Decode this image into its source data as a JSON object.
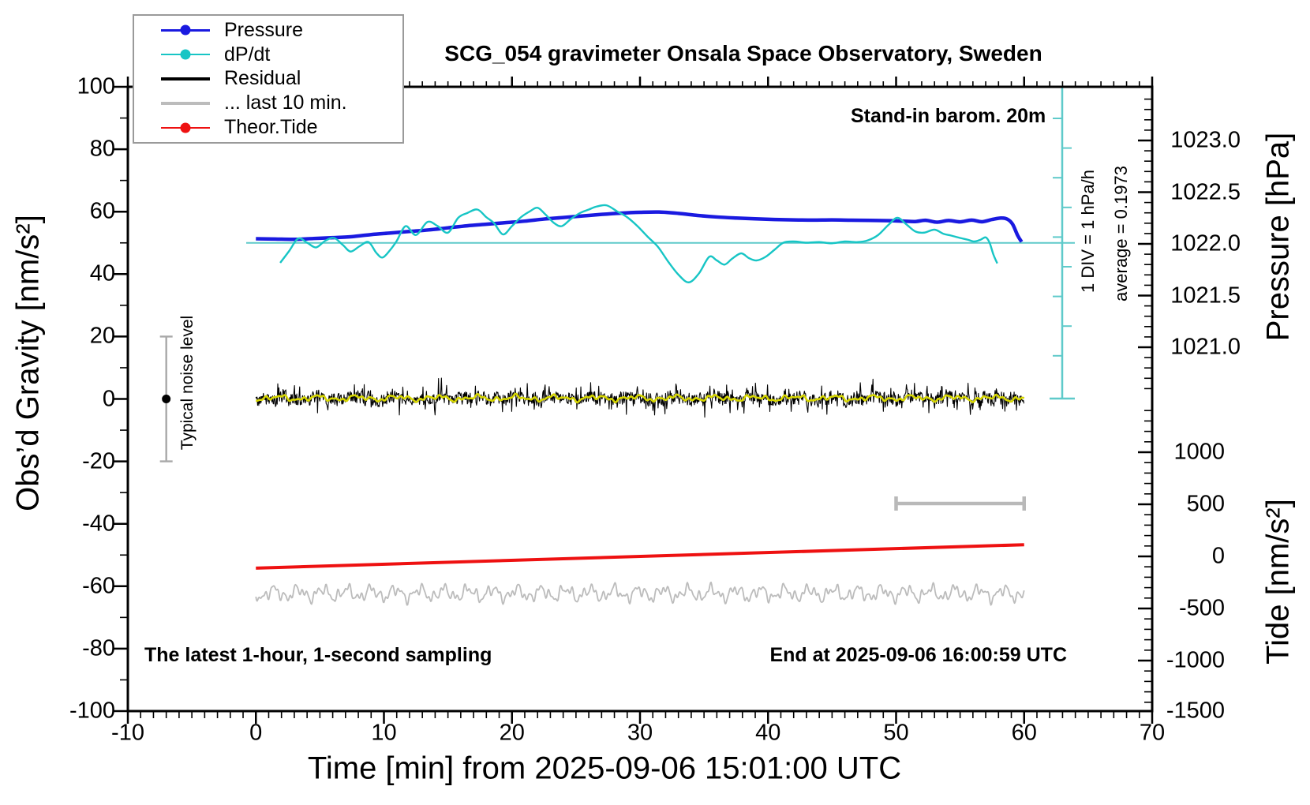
{
  "title": "SCG_054 gravimeter Onsala Space Observatory, Sweden",
  "annotations": {
    "stand_in": "Stand-in barom. 20m",
    "div_scale": "1 DIV = 1 hPa/h",
    "average": "average = 0.1973",
    "noise_level": "Typical noise level",
    "sampling": "The latest 1-hour, 1-second sampling",
    "end_time": "End at 2025-09-06 16:00:59 UTC"
  },
  "colors": {
    "pressure": "#1a1ae0",
    "dpdt": "#17c5c5",
    "dpdt_zero_line": "#5fcaca",
    "residual": "#000000",
    "residual_smooth": "#d6d600",
    "last10": "#bcbcbc",
    "tide": "#ee1111",
    "noise_bar": "#a8a8a8",
    "scale_bar_gray": "#b9b9b9"
  },
  "legend": {
    "items": [
      {
        "label": "Pressure",
        "color": "#1a1ae0",
        "line_width": 2.5,
        "marker": true
      },
      {
        "label": "dP/dt",
        "color": "#17c5c5",
        "line_width": 2.2,
        "marker": true
      },
      {
        "label": "Residual",
        "color": "#000000",
        "line_width": 4.5,
        "marker": false
      },
      {
        "label": "... last 10 min.",
        "color": "#bcbcbc",
        "line_width": 4,
        "marker": false
      },
      {
        "label": "Theor.Tide",
        "color": "#ee1111",
        "line_width": 2.2,
        "marker": true
      }
    ]
  },
  "axes": {
    "x": {
      "title": "Time [min] from 2025-09-06 15:01:00 UTC",
      "min": -10,
      "max": 70,
      "major_step": 10,
      "minor_step": 1,
      "tick_labels": [
        -10,
        0,
        10,
        20,
        30,
        40,
        50,
        60,
        70
      ]
    },
    "gravity": {
      "title": "Obs’d Gravity [nm/s²]",
      "min": -100,
      "max": 100,
      "major_step": 20,
      "minor_step": 10,
      "tick_labels": [
        100,
        80,
        60,
        40,
        20,
        0,
        -20,
        -40,
        -60,
        -80,
        -100
      ]
    },
    "pressure": {
      "title": "Pressure [hPa]",
      "tick_labels": [
        "1023.0",
        "1022.5",
        "1022.0",
        "1021.5",
        "1021.0"
      ],
      "tick_values": [
        1023.0,
        1022.5,
        1022.0,
        1021.5,
        1021.0
      ],
      "minor_step": 0.1
    },
    "tide": {
      "title": "Tide [nm/s²]",
      "tick_labels": [
        "1000",
        "500",
        "0",
        "-500",
        "-1000",
        "-1500"
      ],
      "tick_values": [
        1000,
        500,
        0,
        -500,
        -1000,
        -1500
      ],
      "minor_step": 100
    }
  },
  "chart_data": {
    "type": "line",
    "x_unit": "minutes from 2025-09-06 15:01:00 UTC",
    "series": [
      {
        "name": "Pressure",
        "unit": "hPa",
        "axis": "pressure",
        "points": [
          [
            0,
            1022.05
          ],
          [
            1.5,
            1022.047
          ],
          [
            3,
            1022.044
          ],
          [
            4.5,
            1022.052
          ],
          [
            6,
            1022.06
          ],
          [
            7.5,
            1022.07
          ],
          [
            9,
            1022.09
          ],
          [
            10.5,
            1022.105
          ],
          [
            12,
            1022.12
          ],
          [
            13.5,
            1022.135
          ],
          [
            15,
            1022.155
          ],
          [
            16.5,
            1022.175
          ],
          [
            18,
            1022.19
          ],
          [
            19.5,
            1022.205
          ],
          [
            21,
            1022.22
          ],
          [
            22.5,
            1022.24
          ],
          [
            24,
            1022.255
          ],
          [
            25.5,
            1022.27
          ],
          [
            27,
            1022.285
          ],
          [
            28.5,
            1022.297
          ],
          [
            30,
            1022.305
          ],
          [
            31.5,
            1022.308
          ],
          [
            33,
            1022.295
          ],
          [
            34.5,
            1022.275
          ],
          [
            36,
            1022.26
          ],
          [
            37.5,
            1022.25
          ],
          [
            39,
            1022.242
          ],
          [
            40.5,
            1022.236
          ],
          [
            42,
            1022.232
          ],
          [
            43.5,
            1022.23
          ],
          [
            45,
            1022.232
          ],
          [
            46.5,
            1022.229
          ],
          [
            48,
            1022.227
          ],
          [
            49.5,
            1022.224
          ],
          [
            50.5,
            1022.22
          ],
          [
            51.5,
            1022.216
          ],
          [
            52.3,
            1022.228
          ],
          [
            53.2,
            1022.21
          ],
          [
            54.1,
            1022.226
          ],
          [
            55,
            1022.213
          ],
          [
            55.9,
            1022.23
          ],
          [
            56.7,
            1022.214
          ],
          [
            57.5,
            1022.236
          ],
          [
            58.2,
            1022.25
          ],
          [
            58.7,
            1022.238
          ],
          [
            59.1,
            1022.19
          ],
          [
            59.5,
            1022.08
          ],
          [
            59.8,
            1022.02
          ]
        ]
      },
      {
        "name": "dP/dt",
        "unit": "hPa/h",
        "axis": "dpdt_div",
        "div_value": "1 hPa/h",
        "points": [
          [
            1.9,
            -0.32
          ],
          [
            2.6,
            -0.12
          ],
          [
            3.3,
            0.09
          ],
          [
            4.0,
            0.02
          ],
          [
            4.7,
            -0.06
          ],
          [
            5.4,
            0.05
          ],
          [
            6.1,
            0.1
          ],
          [
            6.8,
            -0.02
          ],
          [
            7.4,
            -0.13
          ],
          [
            8.1,
            -0.04
          ],
          [
            8.8,
            0.03
          ],
          [
            9.4,
            -0.15
          ],
          [
            9.9,
            -0.23
          ],
          [
            10.5,
            -0.1
          ],
          [
            11.0,
            0.05
          ],
          [
            11.7,
            0.3
          ],
          [
            12.5,
            0.15
          ],
          [
            13.4,
            0.37
          ],
          [
            14.2,
            0.3
          ],
          [
            15.0,
            0.19
          ],
          [
            15.8,
            0.44
          ],
          [
            16.5,
            0.52
          ],
          [
            17.3,
            0.58
          ],
          [
            18.0,
            0.45
          ],
          [
            18.6,
            0.35
          ],
          [
            19.3,
            0.16
          ],
          [
            20.0,
            0.3
          ],
          [
            20.7,
            0.45
          ],
          [
            21.4,
            0.55
          ],
          [
            22.0,
            0.61
          ],
          [
            22.6,
            0.5
          ],
          [
            23.3,
            0.35
          ],
          [
            23.9,
            0.3
          ],
          [
            24.6,
            0.42
          ],
          [
            25.3,
            0.52
          ],
          [
            26.0,
            0.58
          ],
          [
            26.6,
            0.63
          ],
          [
            27.4,
            0.65
          ],
          [
            28.2,
            0.55
          ],
          [
            29.0,
            0.45
          ],
          [
            29.8,
            0.3
          ],
          [
            30.6,
            0.12
          ],
          [
            31.4,
            -0.05
          ],
          [
            32.2,
            -0.3
          ],
          [
            33.0,
            -0.52
          ],
          [
            33.8,
            -0.65
          ],
          [
            34.6,
            -0.5
          ],
          [
            35.4,
            -0.22
          ],
          [
            36.0,
            -0.28
          ],
          [
            36.6,
            -0.35
          ],
          [
            37.2,
            -0.25
          ],
          [
            37.9,
            -0.16
          ],
          [
            38.5,
            -0.24
          ],
          [
            39.1,
            -0.28
          ],
          [
            39.8,
            -0.22
          ],
          [
            40.5,
            -0.1
          ],
          [
            41.2,
            0.02
          ],
          [
            42.0,
            0.04
          ],
          [
            43.0,
            0.02
          ],
          [
            44.0,
            0.03
          ],
          [
            45.0,
            0.01
          ],
          [
            46.0,
            0.04
          ],
          [
            47.0,
            0.03
          ],
          [
            47.8,
            0.06
          ],
          [
            48.6,
            0.15
          ],
          [
            49.4,
            0.32
          ],
          [
            50.1,
            0.44
          ],
          [
            50.8,
            0.33
          ],
          [
            51.5,
            0.21
          ],
          [
            52.2,
            0.19
          ],
          [
            53.0,
            0.24
          ],
          [
            53.7,
            0.17
          ],
          [
            54.3,
            0.14
          ],
          [
            55.0,
            0.1
          ],
          [
            55.6,
            0.07
          ],
          [
            56.1,
            0.04
          ],
          [
            56.6,
            0.07
          ],
          [
            57.0,
            0.11
          ],
          [
            57.3,
            0.02
          ],
          [
            57.6,
            -0.18
          ],
          [
            57.9,
            -0.33
          ]
        ]
      },
      {
        "name": "Residual",
        "unit": "nm/s2",
        "axis": "gravity",
        "style": "noise",
        "center": 0.25,
        "typical_spread": 3.5,
        "t_range": [
          0,
          60
        ]
      },
      {
        "name": "Residual smoothed",
        "unit": "nm/s2",
        "axis": "gravity",
        "style": "smooth_noise",
        "center": 0.25,
        "amplitude": 1.3,
        "t_range": [
          0,
          60
        ]
      },
      {
        "name": "... last 10 min.",
        "unit": "nm/s2",
        "axis": "gravity",
        "style": "smooth_noise",
        "center": -62.3,
        "amplitude": 2.8,
        "t_range": [
          0,
          60
        ]
      },
      {
        "name": "Theor.Tide",
        "unit": "nm/s2",
        "axis": "tide",
        "points": [
          [
            0,
            -113
          ],
          [
            60,
            112
          ]
        ]
      }
    ],
    "overlays": {
      "noise_errorbar": {
        "t": -7,
        "gravity_center": 0,
        "gravity_halfspan": 20
      },
      "last10_bar": {
        "t0": 50,
        "t1": 60,
        "gravity": -33.5
      },
      "dpdt_zero_line_gravity": 50,
      "dpdt_scale_div": "1 DIV = 1 hPa/h",
      "dpdt_average": 0.1973
    }
  }
}
